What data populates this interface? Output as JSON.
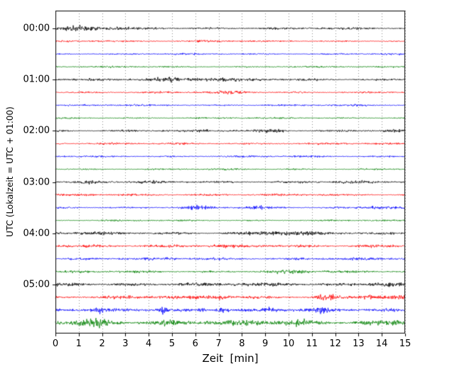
{
  "figure": {
    "background": "#ffffff"
  },
  "chart_data": {
    "type": "line",
    "subtype": "helicorder-dayplot",
    "title": "",
    "xlabel": "Zeit  [min]",
    "ylabel": "UTC (Lokalzeit = UTC + 01:00)",
    "x_range": [
      0,
      15
    ],
    "x_ticks": [
      "0",
      "1",
      "2",
      "3",
      "4",
      "5",
      "6",
      "7",
      "8",
      "9",
      "10",
      "11",
      "12",
      "13",
      "14",
      "15"
    ],
    "minutes_per_line": 15,
    "grid": true,
    "grid_color": "#888888",
    "frame_color": "#000000",
    "color_cycle": [
      "#000000",
      "#ff0000",
      "#0000ff",
      "#008000"
    ],
    "hour_labels": [
      {
        "label": "00:00",
        "row": 0
      },
      {
        "label": "01:00",
        "row": 4
      },
      {
        "label": "02:00",
        "row": 8
      },
      {
        "label": "03:00",
        "row": 12
      },
      {
        "label": "04:00",
        "row": 16
      },
      {
        "label": "05:00",
        "row": 20
      }
    ],
    "traces": [
      {
        "start": "00:00",
        "color": "#000000",
        "amp": 0.9,
        "bursts": [
          [
            1.1,
            0.6,
            1.6
          ],
          [
            2.6,
            0.4,
            0.7
          ]
        ]
      },
      {
        "start": "00:15",
        "color": "#ff0000",
        "amp": 0.6,
        "bursts": [
          [
            2.1,
            0.4,
            0.5
          ],
          [
            6.5,
            0.8,
            0.3
          ]
        ]
      },
      {
        "start": "00:30",
        "color": "#0000ff",
        "amp": 0.6,
        "bursts": []
      },
      {
        "start": "00:45",
        "color": "#008000",
        "amp": 0.6,
        "bursts": []
      },
      {
        "start": "01:00",
        "color": "#000000",
        "amp": 0.9,
        "bursts": [
          [
            4.9,
            1.1,
            1.4
          ],
          [
            7.2,
            0.5,
            0.8
          ]
        ]
      },
      {
        "start": "01:15",
        "color": "#ff0000",
        "amp": 0.7,
        "bursts": [
          [
            7.6,
            0.5,
            0.8
          ]
        ]
      },
      {
        "start": "01:30",
        "color": "#0000ff",
        "amp": 0.65,
        "bursts": []
      },
      {
        "start": "01:45",
        "color": "#008000",
        "amp": 0.6,
        "bursts": []
      },
      {
        "start": "02:00",
        "color": "#000000",
        "amp": 0.9,
        "bursts": [
          [
            9.3,
            0.35,
            1.3
          ]
        ]
      },
      {
        "start": "02:15",
        "color": "#ff0000",
        "amp": 0.7,
        "bursts": []
      },
      {
        "start": "02:30",
        "color": "#0000ff",
        "amp": 0.7,
        "bursts": []
      },
      {
        "start": "02:45",
        "color": "#008000",
        "amp": 0.6,
        "bursts": []
      },
      {
        "start": "03:00",
        "color": "#000000",
        "amp": 0.9,
        "bursts": [
          [
            1.5,
            0.25,
            1.0
          ]
        ]
      },
      {
        "start": "03:15",
        "color": "#ff0000",
        "amp": 0.8,
        "bursts": []
      },
      {
        "start": "03:30",
        "color": "#0000ff",
        "amp": 0.8,
        "bursts": [
          [
            6.2,
            0.35,
            1.3
          ],
          [
            8.7,
            0.35,
            1.0
          ],
          [
            13.8,
            0.45,
            1.3
          ]
        ]
      },
      {
        "start": "03:45",
        "color": "#008000",
        "amp": 0.6,
        "bursts": []
      },
      {
        "start": "04:00",
        "color": "#000000",
        "amp": 1.1,
        "bursts": [
          [
            9.6,
            0.7,
            1.2
          ]
        ]
      },
      {
        "start": "04:15",
        "color": "#ff0000",
        "amp": 1.2,
        "bursts": []
      },
      {
        "start": "04:30",
        "color": "#0000ff",
        "amp": 1.0,
        "bursts": []
      },
      {
        "start": "04:45",
        "color": "#008000",
        "amp": 0.9,
        "bursts": [
          [
            10.2,
            0.4,
            1.2
          ]
        ]
      },
      {
        "start": "05:00",
        "color": "#000000",
        "amp": 1.3,
        "bursts": [
          [
            14.1,
            0.5,
            1.2
          ]
        ]
      },
      {
        "start": "05:15",
        "color": "#ff0000",
        "amp": 1.3,
        "bursts": [
          [
            7.0,
            0.3,
            1.2
          ],
          [
            11.6,
            0.25,
            2.2
          ],
          [
            13.5,
            0.35,
            1.2
          ]
        ]
      },
      {
        "start": "05:30",
        "color": "#0000ff",
        "amp": 1.3,
        "bursts": [
          [
            1.9,
            0.12,
            2.6
          ],
          [
            4.6,
            0.12,
            3.0
          ],
          [
            6.3,
            0.1,
            3.4
          ],
          [
            7.1,
            0.18,
            2.2
          ],
          [
            9.2,
            0.25,
            1.6
          ],
          [
            11.5,
            0.18,
            2.0
          ]
        ]
      },
      {
        "start": "05:45",
        "color": "#008000",
        "amp": 1.9,
        "bursts": [
          [
            1.7,
            0.35,
            3.0
          ],
          [
            4.8,
            0.3,
            1.2
          ],
          [
            10.5,
            0.4,
            1.0
          ],
          [
            14.6,
            0.3,
            1.2
          ]
        ]
      }
    ]
  }
}
